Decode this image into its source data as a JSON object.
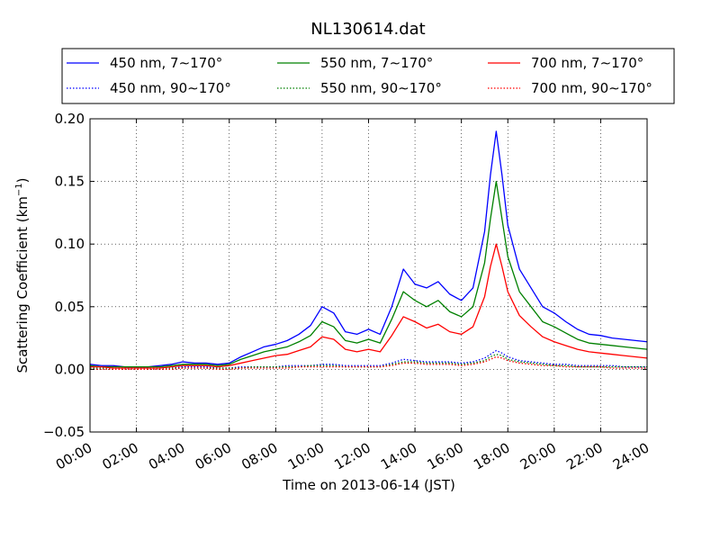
{
  "chart_data": {
    "type": "line",
    "title": "NL130614.dat",
    "xlabel": "Time on 2013-06-14 (JST)",
    "ylabel_main": "Scattering Coefficient (km",
    "ylabel_sup": "−1",
    "ylabel_end": ")",
    "xlim": [
      0,
      24
    ],
    "ylim": [
      -0.05,
      0.2
    ],
    "xticks": [
      {
        "v": 0,
        "label": "00:00"
      },
      {
        "v": 2,
        "label": "02:00"
      },
      {
        "v": 4,
        "label": "04:00"
      },
      {
        "v": 6,
        "label": "06:00"
      },
      {
        "v": 8,
        "label": "08:00"
      },
      {
        "v": 10,
        "label": "10:00"
      },
      {
        "v": 12,
        "label": "12:00"
      },
      {
        "v": 14,
        "label": "14:00"
      },
      {
        "v": 16,
        "label": "16:00"
      },
      {
        "v": 18,
        "label": "18:00"
      },
      {
        "v": 20,
        "label": "20:00"
      },
      {
        "v": 22,
        "label": "22:00"
      },
      {
        "v": 24,
        "label": "24:00"
      }
    ],
    "yticks": [
      {
        "v": -0.05,
        "label": "−0.05"
      },
      {
        "v": 0,
        "label": "0.00"
      },
      {
        "v": 0.05,
        "label": "0.05"
      },
      {
        "v": 0.1,
        "label": "0.10"
      },
      {
        "v": 0.15,
        "label": "0.15"
      },
      {
        "v": 0.2,
        "label": "0.20"
      }
    ],
    "grid": true,
    "legend_position": "top",
    "x": [
      0,
      0.5,
      1,
      1.5,
      2,
      2.5,
      3,
      3.5,
      4,
      4.5,
      5,
      5.5,
      6,
      6.5,
      7,
      7.5,
      8,
      8.5,
      9,
      9.5,
      10,
      10.5,
      11,
      11.5,
      12,
      12.5,
      13,
      13.5,
      14,
      14.5,
      15,
      15.5,
      16,
      16.5,
      17,
      17.25,
      17.5,
      17.75,
      18,
      18.5,
      19,
      19.5,
      20,
      20.5,
      21,
      21.5,
      22,
      22.5,
      23,
      23.5,
      24
    ],
    "series": [
      {
        "name": "450 nm, 7∼170°",
        "color": "#0000ff",
        "style": "solid",
        "values": [
          0.004,
          0.003,
          0.003,
          0.002,
          0.002,
          0.002,
          0.003,
          0.004,
          0.006,
          0.005,
          0.005,
          0.004,
          0.005,
          0.01,
          0.014,
          0.018,
          0.02,
          0.023,
          0.028,
          0.035,
          0.05,
          0.045,
          0.03,
          0.028,
          0.032,
          0.028,
          0.05,
          0.08,
          0.068,
          0.065,
          0.07,
          0.06,
          0.055,
          0.065,
          0.11,
          0.155,
          0.19,
          0.155,
          0.115,
          0.08,
          0.065,
          0.05,
          0.045,
          0.038,
          0.032,
          0.028,
          0.027,
          0.025,
          0.024,
          0.023,
          0.022
        ]
      },
      {
        "name": "450 nm, 90∼170°",
        "color": "#0000ff",
        "style": "dotted",
        "values": [
          0.001,
          0.001,
          0.001,
          0.001,
          0.001,
          0.001,
          0.001,
          0.001,
          0.002,
          0.002,
          0.002,
          0.001,
          0.001,
          0.002,
          0.002,
          0.002,
          0.002,
          0.003,
          0.003,
          0.003,
          0.004,
          0.004,
          0.003,
          0.003,
          0.003,
          0.003,
          0.005,
          0.008,
          0.007,
          0.006,
          0.006,
          0.006,
          0.005,
          0.006,
          0.009,
          0.012,
          0.015,
          0.013,
          0.01,
          0.007,
          0.006,
          0.005,
          0.004,
          0.004,
          0.003,
          0.003,
          0.003,
          0.003,
          0.002,
          0.002,
          0.002
        ]
      },
      {
        "name": "550 nm, 7∼170°",
        "color": "#008000",
        "style": "solid",
        "values": [
          0.003,
          0.002,
          0.002,
          0.002,
          0.002,
          0.002,
          0.002,
          0.003,
          0.004,
          0.004,
          0.004,
          0.003,
          0.004,
          0.008,
          0.011,
          0.014,
          0.016,
          0.018,
          0.022,
          0.027,
          0.038,
          0.034,
          0.023,
          0.021,
          0.024,
          0.021,
          0.04,
          0.062,
          0.055,
          0.05,
          0.055,
          0.046,
          0.042,
          0.05,
          0.085,
          0.12,
          0.15,
          0.12,
          0.09,
          0.062,
          0.05,
          0.038,
          0.034,
          0.029,
          0.024,
          0.021,
          0.02,
          0.019,
          0.018,
          0.017,
          0.016
        ]
      },
      {
        "name": "550 nm, 90∼170°",
        "color": "#008000",
        "style": "dotted",
        "values": [
          0.001,
          0.001,
          0.001,
          0.001,
          0.001,
          0.001,
          0.001,
          0.001,
          0.001,
          0.001,
          0.001,
          0.001,
          0.001,
          0.001,
          0.002,
          0.002,
          0.002,
          0.002,
          0.002,
          0.003,
          0.003,
          0.003,
          0.002,
          0.002,
          0.002,
          0.002,
          0.004,
          0.006,
          0.006,
          0.005,
          0.005,
          0.005,
          0.004,
          0.005,
          0.007,
          0.01,
          0.012,
          0.011,
          0.008,
          0.006,
          0.005,
          0.004,
          0.003,
          0.003,
          0.002,
          0.002,
          0.002,
          0.002,
          0.002,
          0.002,
          0.002
        ]
      },
      {
        "name": "700 nm, 7∼170°",
        "color": "#ff0000",
        "style": "solid",
        "values": [
          0.002,
          0.002,
          0.001,
          0.001,
          0.001,
          0.001,
          0.001,
          0.002,
          0.003,
          0.003,
          0.003,
          0.002,
          0.003,
          0.005,
          0.007,
          0.009,
          0.011,
          0.012,
          0.015,
          0.018,
          0.026,
          0.024,
          0.016,
          0.014,
          0.016,
          0.014,
          0.027,
          0.042,
          0.038,
          0.033,
          0.036,
          0.03,
          0.028,
          0.034,
          0.058,
          0.082,
          0.1,
          0.082,
          0.062,
          0.043,
          0.034,
          0.026,
          0.022,
          0.019,
          0.016,
          0.014,
          0.013,
          0.012,
          0.011,
          0.01,
          0.009
        ]
      },
      {
        "name": "700 nm, 90∼170°",
        "color": "#ff0000",
        "style": "dotted",
        "values": [
          0.0,
          0.0,
          0.0,
          0.0,
          0.0,
          0.0,
          0.0,
          0.0,
          0.001,
          0.001,
          0.001,
          0.0,
          0.0,
          0.001,
          0.001,
          0.001,
          0.001,
          0.001,
          0.002,
          0.002,
          0.002,
          0.002,
          0.002,
          0.002,
          0.002,
          0.002,
          0.003,
          0.005,
          0.005,
          0.004,
          0.004,
          0.004,
          0.003,
          0.004,
          0.006,
          0.008,
          0.01,
          0.009,
          0.007,
          0.005,
          0.004,
          0.003,
          0.003,
          0.002,
          0.002,
          0.002,
          0.002,
          0.001,
          0.001,
          0.001,
          0.001
        ]
      }
    ]
  }
}
